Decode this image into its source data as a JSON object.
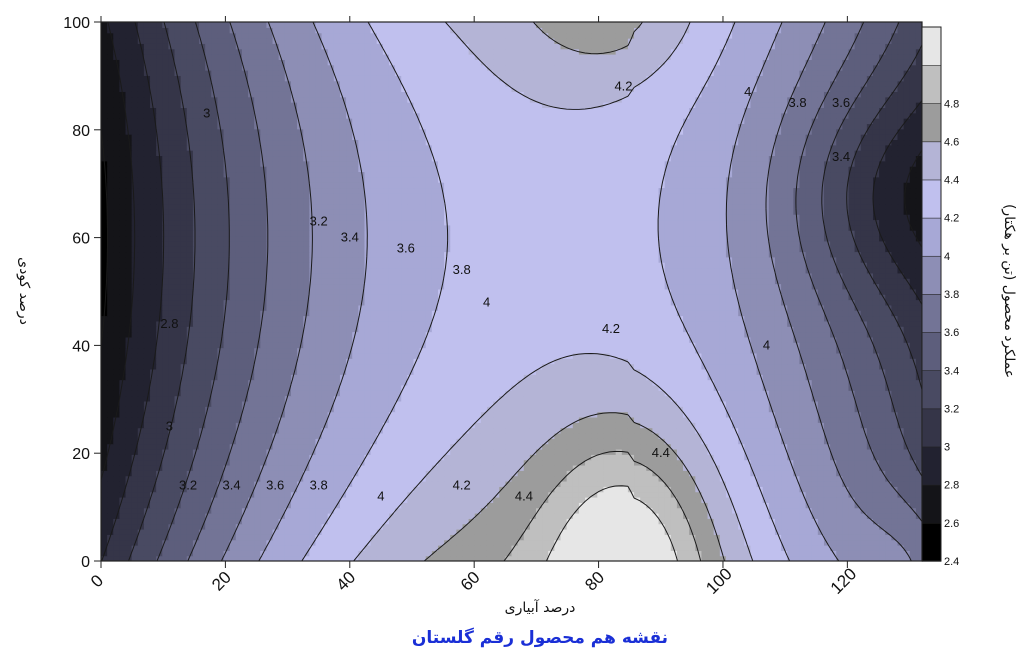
{
  "chart_data": {
    "type": "contour",
    "xlabel": "درصد آبیاری",
    "ylabel": "درصد کودی",
    "colorbar_label": "عملکرد محصول (تن بر هکتار)",
    "caption": "نقشه هم محصول رقم گلستان",
    "xlim": [
      0,
      132
    ],
    "ylim": [
      0,
      100
    ],
    "x_ticks": [
      0,
      20,
      40,
      60,
      80,
      100,
      120
    ],
    "y_ticks": [
      0,
      20,
      40,
      60,
      80,
      100
    ],
    "contour_levels": [
      2.4,
      2.6,
      2.8,
      3,
      3.2,
      3.4,
      3.6,
      3.8,
      4,
      4.2,
      4.4,
      4.6,
      4.8,
      5.0
    ],
    "colorbar_ticks": [
      "2.4",
      "2.6",
      "2.8",
      "3",
      "3.2",
      "3.4",
      "3.6",
      "3.8",
      "4",
      "4.2",
      "4.4",
      "4.6",
      "4.8"
    ],
    "colorbar_colors": [
      "#000000",
      "#141418",
      "#222230",
      "#353548",
      "#494a62",
      "#5d5e7c",
      "#737496",
      "#8d8eb5",
      "#a7a8d6",
      "#c0c0ee",
      "#b4b4d6",
      "#9c9c9c",
      "#bfbfbf",
      "#e6e6e6"
    ],
    "contour_labels": [
      {
        "text": "3",
        "x": 17,
        "y": 83
      },
      {
        "text": "3.2",
        "x": 35,
        "y": 63
      },
      {
        "text": "3.4",
        "x": 40,
        "y": 60
      },
      {
        "text": "3.6",
        "x": 49,
        "y": 58
      },
      {
        "text": "3.8",
        "x": 58,
        "y": 54
      },
      {
        "text": "4",
        "x": 62,
        "y": 48
      },
      {
        "text": "2.8",
        "x": 11,
        "y": 44
      },
      {
        "text": "3",
        "x": 11,
        "y": 25
      },
      {
        "text": "3.2",
        "x": 14,
        "y": 14
      },
      {
        "text": "3.4",
        "x": 21,
        "y": 14
      },
      {
        "text": "3.6",
        "x": 28,
        "y": 14
      },
      {
        "text": "3.8",
        "x": 35,
        "y": 14
      },
      {
        "text": "4",
        "x": 45,
        "y": 12
      },
      {
        "text": "4.2",
        "x": 58,
        "y": 14
      },
      {
        "text": "4.4",
        "x": 68,
        "y": 12
      },
      {
        "text": "4.4",
        "x": 90,
        "y": 20
      },
      {
        "text": "4.2",
        "x": 82,
        "y": 43
      },
      {
        "text": "4",
        "x": 107,
        "y": 40
      },
      {
        "text": "4.2",
        "x": 84,
        "y": 88
      },
      {
        "text": "4",
        "x": 104,
        "y": 87
      },
      {
        "text": "3.8",
        "x": 112,
        "y": 85
      },
      {
        "text": "3.6",
        "x": 119,
        "y": 85
      },
      {
        "text": "3.4",
        "x": 119,
        "y": 75
      }
    ]
  }
}
